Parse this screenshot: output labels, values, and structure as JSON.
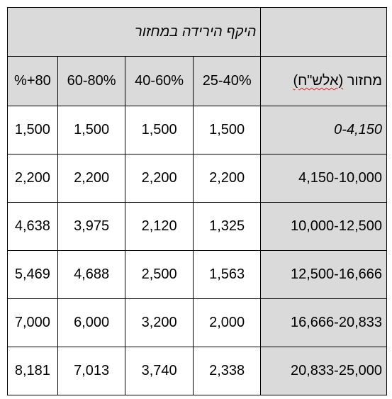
{
  "table": {
    "title": "היקף הירידה במחזור",
    "turnover_header_word": "מחזור",
    "turnover_header_unit": "(אלש\"ח)",
    "range_headers": [
      "25-40%",
      "40-60%",
      "60-80%",
      "80+%"
    ],
    "rows": [
      {
        "turnover": "0-4,150",
        "values": [
          "1,500",
          "1,500",
          "1,500",
          "1,500"
        ]
      },
      {
        "turnover": "4,150-10,000",
        "values": [
          "2,200",
          "2,200",
          "2,200",
          "2,200"
        ]
      },
      {
        "turnover": "10,000-12,500",
        "values": [
          "1,325",
          "2,120",
          "3,975",
          "4,638"
        ]
      },
      {
        "turnover": "12,500-16,666",
        "values": [
          "1,563",
          "2,500",
          "4,688",
          "5,469"
        ]
      },
      {
        "turnover": "16,666-20,833",
        "values": [
          "2,000",
          "3,200",
          "6,000",
          "7,000"
        ]
      },
      {
        "turnover": "20,833-25,000",
        "values": [
          "2,338",
          "3,740",
          "7,013",
          "8,181"
        ]
      }
    ]
  },
  "colors": {
    "header_background": "#dadada",
    "border": "#000000",
    "spellcheck_underline": "#e02020"
  }
}
